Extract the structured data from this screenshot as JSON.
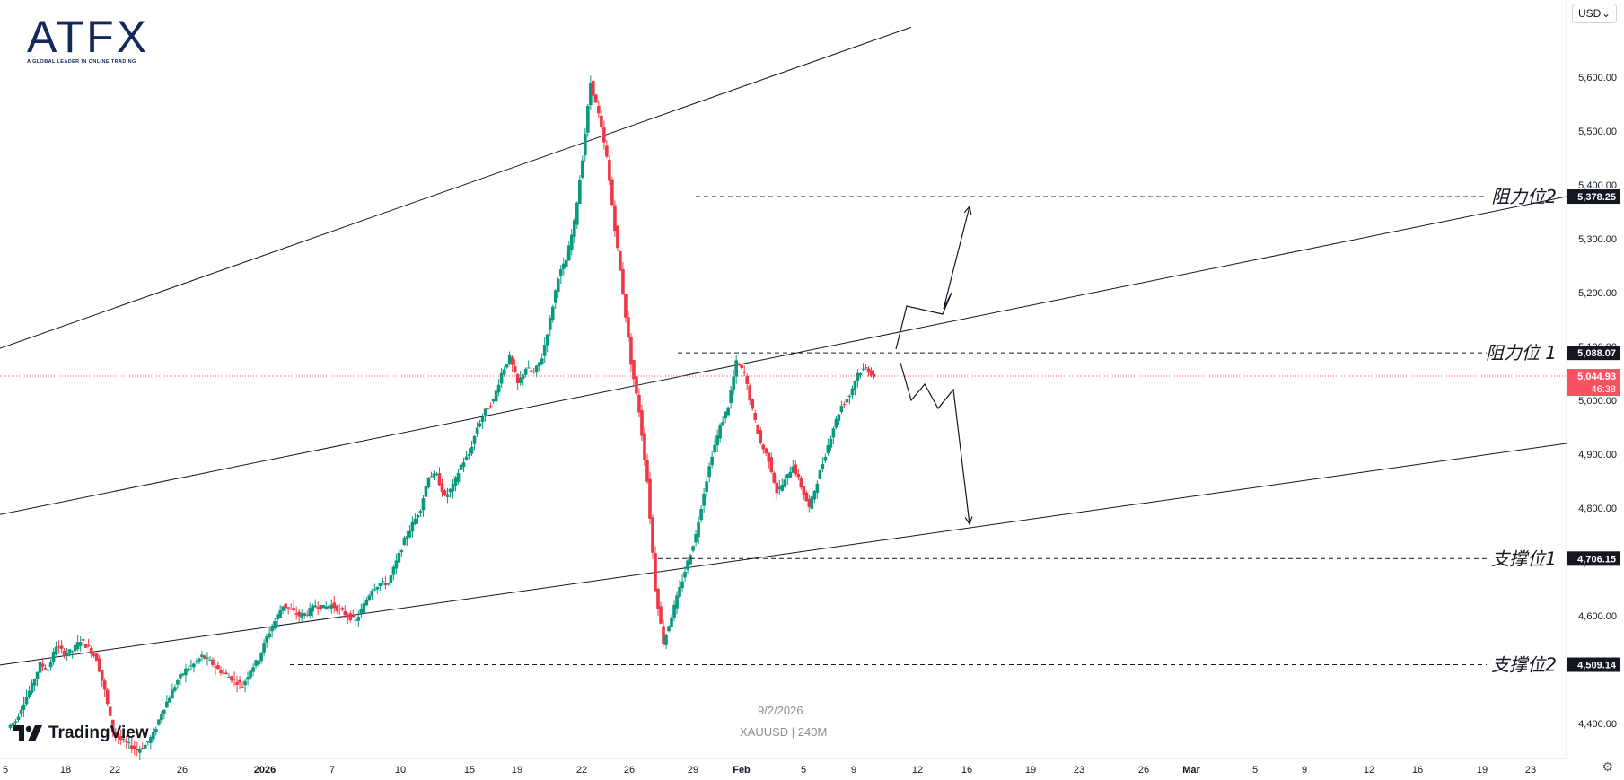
{
  "logo": {
    "text": "ATFX",
    "tagline": "A GLOBAL LEADER IN ONLINE TRADING"
  },
  "currency": {
    "value": "USD"
  },
  "brand": {
    "name": "TradingView"
  },
  "watermark": {
    "date": "9/2/2026",
    "symbol": "XAUUSD | 240M"
  },
  "colors": {
    "up": "#089981",
    "down": "#f23645",
    "line": "#131722",
    "axis_text": "#131722",
    "current_price_bg": "#f7525f"
  },
  "chart_data": {
    "type": "candlestick",
    "symbol": "XAUUSD",
    "timeframe": "240M",
    "y_axis": {
      "range": [
        4350,
        5690
      ],
      "ticks": [
        "5,600.00",
        "5,500.00",
        "5,400.00",
        "5,300.00",
        "5,200.00",
        "5,100.00",
        "5,000.00",
        "4,900.00",
        "4,800.00",
        "4,700.00",
        "4,600.00",
        "4,400.00"
      ]
    },
    "x_axis": {
      "ticks": [
        "5",
        "18",
        "22",
        "26",
        "2026",
        "7",
        "10",
        "15",
        "19",
        "22",
        "26",
        "29",
        "Feb",
        "5",
        "9",
        "12",
        "16",
        "19",
        "23",
        "26",
        "Mar",
        "5",
        "9",
        "12",
        "16",
        "19",
        "23"
      ]
    },
    "levels": [
      {
        "label": "阻力位2",
        "price": "5,378.25"
      },
      {
        "label": "阻力位 1",
        "price": "5,088.07"
      },
      {
        "label": "支撑位1",
        "price": "4,706.15"
      },
      {
        "label": "支撑位2",
        "price": "4,509.14"
      }
    ],
    "current_price": {
      "price": "5,044.93",
      "countdown": "46:38"
    },
    "path": [
      4392,
      4405,
      4440,
      4470,
      4510,
      4500,
      4545,
      4530,
      4535,
      4555,
      4540,
      4520,
      4460,
      4385,
      4370,
      4360,
      4350,
      4360,
      4380,
      4420,
      4450,
      4480,
      4500,
      4510,
      4525,
      4515,
      4500,
      4490,
      4480,
      4470,
      4500,
      4520,
      4560,
      4590,
      4620,
      4610,
      4600,
      4605,
      4620,
      4615,
      4620,
      4610,
      4600,
      4590,
      4620,
      4650,
      4660,
      4660,
      4700,
      4740,
      4770,
      4800,
      4860,
      4860,
      4820,
      4840,
      4880,
      4900,
      4950,
      4980,
      5000,
      5050,
      5080,
      5030,
      5060,
      5050,
      5080,
      5150,
      5230,
      5260,
      5330,
      5450,
      5590,
      5530,
      5450,
      5320,
      5200,
      5070,
      4980,
      4850,
      4650,
      4550,
      4600,
      4650,
      4700,
      4750,
      4830,
      4900,
      4950,
      4990,
      5070,
      5050,
      4980,
      4920,
      4890,
      4830,
      4850,
      4880,
      4840,
      4800,
      4850,
      4900,
      4950,
      4990,
      5010,
      5050,
      5060,
      5044.93
    ],
    "trendlines": [
      {
        "from": [
          "Dec 5",
          5100
        ],
        "to": [
          "Jan 31",
          5690
        ]
      },
      {
        "from": [
          "Dec 5",
          4790
        ],
        "to": [
          "Mar 23",
          5378.25
        ]
      },
      {
        "from": [
          "Dec 5",
          4510
        ],
        "to": [
          "Mar 23",
          4920
        ]
      }
    ],
    "scenarios": {
      "bullish": [
        [
          5095,
          5175,
          5160,
          5200,
          5170,
          5360
        ]
      ],
      "bearish": [
        [
          5070,
          5000,
          5030,
          4985,
          5020,
          4770
        ]
      ]
    }
  }
}
